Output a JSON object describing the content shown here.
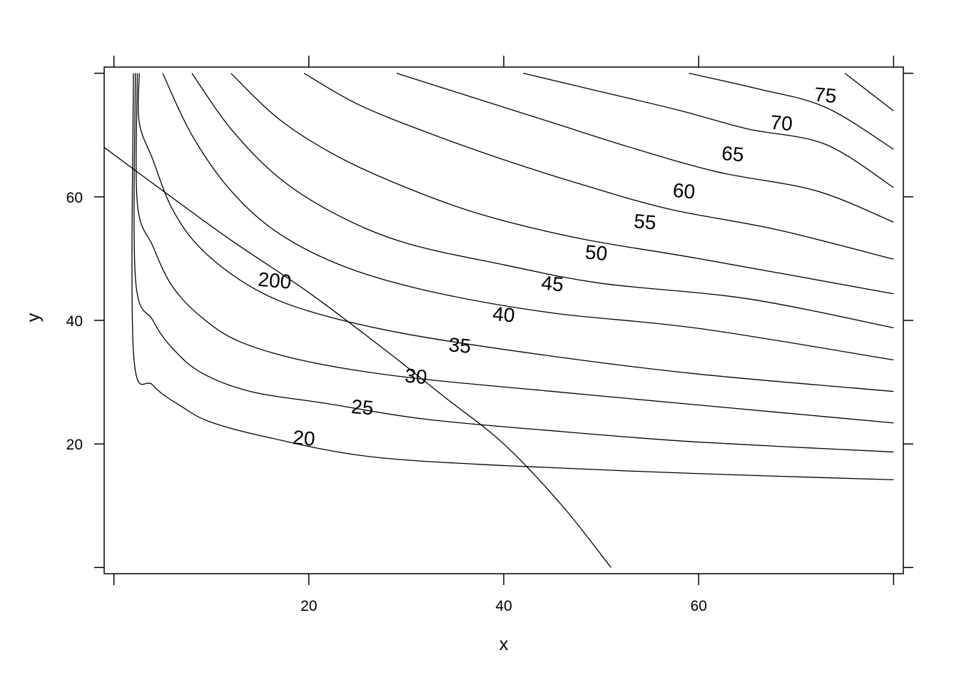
{
  "chart_data": {
    "type": "contour",
    "title": "",
    "xlabel": "x",
    "ylabel": "y",
    "xlim": [
      -1,
      81
    ],
    "ylim": [
      -1,
      81
    ],
    "xticks": [
      20,
      40,
      60
    ],
    "yticks": [
      20,
      40,
      60
    ],
    "grid": false,
    "legend": "none",
    "levels": [
      20,
      25,
      30,
      35,
      40,
      45,
      50,
      55,
      60,
      65,
      70,
      75
    ],
    "contours": [
      {
        "level": 20,
        "label": "20",
        "label_at": [
          19.5,
          21
        ],
        "points": [
          [
            2,
            80
          ],
          [
            2,
            35
          ],
          [
            4,
            29.5
          ],
          [
            7,
            26
          ],
          [
            10,
            23.5
          ],
          [
            16,
            21
          ],
          [
            26,
            18
          ],
          [
            40,
            16.5
          ],
          [
            60,
            15.2
          ],
          [
            80,
            14.2
          ]
        ]
      },
      {
        "level": 25,
        "label": "25",
        "label_at": [
          25.5,
          26
        ],
        "points": [
          [
            2.2,
            80
          ],
          [
            2.2,
            47
          ],
          [
            4,
            40
          ],
          [
            6,
            35.5
          ],
          [
            9,
            31.5
          ],
          [
            14,
            28.5
          ],
          [
            22,
            26.5
          ],
          [
            32,
            24
          ],
          [
            46,
            22
          ],
          [
            60,
            20.3
          ],
          [
            80,
            18.7
          ]
        ]
      },
      {
        "level": 30,
        "label": "30",
        "label_at": [
          31,
          31
        ],
        "points": [
          [
            2.4,
            80
          ],
          [
            2.4,
            59
          ],
          [
            4,
            52
          ],
          [
            6,
            45.5
          ],
          [
            9,
            40.5
          ],
          [
            13,
            36.5
          ],
          [
            20,
            33.3
          ],
          [
            30,
            30.8
          ],
          [
            45,
            28.5
          ],
          [
            60,
            26.3
          ],
          [
            80,
            23.4
          ]
        ]
      },
      {
        "level": 35,
        "label": "35",
        "label_at": [
          35.5,
          36
        ],
        "points": [
          [
            2.6,
            80
          ],
          [
            2.6,
            72
          ],
          [
            4,
            66
          ],
          [
            6,
            58
          ],
          [
            9,
            51.5
          ],
          [
            14,
            45.5
          ],
          [
            20,
            41.5
          ],
          [
            30,
            37.8
          ],
          [
            45,
            34.2
          ],
          [
            60,
            31.3
          ],
          [
            80,
            28.5
          ]
        ]
      },
      {
        "level": 40,
        "label": "40",
        "label_at": [
          40,
          41
        ],
        "points": [
          [
            5,
            80
          ],
          [
            8,
            70
          ],
          [
            12,
            61
          ],
          [
            17,
            54
          ],
          [
            24,
            48.5
          ],
          [
            33,
            44.5
          ],
          [
            45,
            41.2
          ],
          [
            60,
            38.7
          ],
          [
            80,
            33.6
          ]
        ]
      },
      {
        "level": 45,
        "label": "45",
        "label_at": [
          45,
          46
        ],
        "points": [
          [
            8,
            80
          ],
          [
            12,
            71
          ],
          [
            17,
            63
          ],
          [
            23,
            57
          ],
          [
            30,
            52.5
          ],
          [
            40,
            49
          ],
          [
            50,
            46
          ],
          [
            65,
            43.5
          ],
          [
            80,
            38.8
          ]
        ]
      },
      {
        "level": 50,
        "label": "50",
        "label_at": [
          49.5,
          51
        ],
        "points": [
          [
            12,
            80
          ],
          [
            17,
            72.5
          ],
          [
            23,
            66.5
          ],
          [
            30,
            61.5
          ],
          [
            38,
            57
          ],
          [
            48,
            53.2
          ],
          [
            60,
            50
          ],
          [
            80,
            44.3
          ]
        ]
      },
      {
        "level": 55,
        "label": "55",
        "label_at": [
          54.5,
          56
        ],
        "points": [
          [
            19.5,
            80
          ],
          [
            25,
            75
          ],
          [
            32,
            70.5
          ],
          [
            40,
            66
          ],
          [
            48,
            62
          ],
          [
            57,
            58
          ],
          [
            68,
            54.7
          ],
          [
            80,
            49.9
          ]
        ]
      },
      {
        "level": 60,
        "label": "60",
        "label_at": [
          58.5,
          61
        ],
        "points": [
          [
            29,
            80
          ],
          [
            37,
            76
          ],
          [
            45,
            72
          ],
          [
            53,
            68
          ],
          [
            62,
            64
          ],
          [
            72,
            61
          ],
          [
            80,
            55.9
          ]
        ]
      },
      {
        "level": 65,
        "label": "65",
        "label_at": [
          63.5,
          67
        ],
        "points": [
          [
            42,
            80
          ],
          [
            50,
            77
          ],
          [
            58,
            74
          ],
          [
            65,
            71
          ],
          [
            73,
            68.5
          ],
          [
            80,
            61.5
          ]
        ]
      },
      {
        "level": 70,
        "label": "70",
        "label_at": [
          68.5,
          72
        ],
        "points": [
          [
            59,
            80
          ],
          [
            66,
            77.5
          ],
          [
            73,
            74.5
          ],
          [
            80,
            67.7
          ]
        ]
      },
      {
        "level": 75,
        "label": "75",
        "label_at": [
          73,
          76.5
        ],
        "points": [
          [
            75,
            80
          ],
          [
            80,
            73.9
          ]
        ]
      },
      {
        "level": 200,
        "label": "200",
        "label_at": [
          16.5,
          46.5
        ],
        "points": [
          [
            -1,
            68
          ],
          [
            5,
            61
          ],
          [
            12,
            53
          ],
          [
            20,
            44.5
          ],
          [
            28,
            35
          ],
          [
            34,
            27.5
          ],
          [
            40,
            20
          ],
          [
            46,
            10
          ],
          [
            51,
            0
          ]
        ]
      }
    ]
  }
}
